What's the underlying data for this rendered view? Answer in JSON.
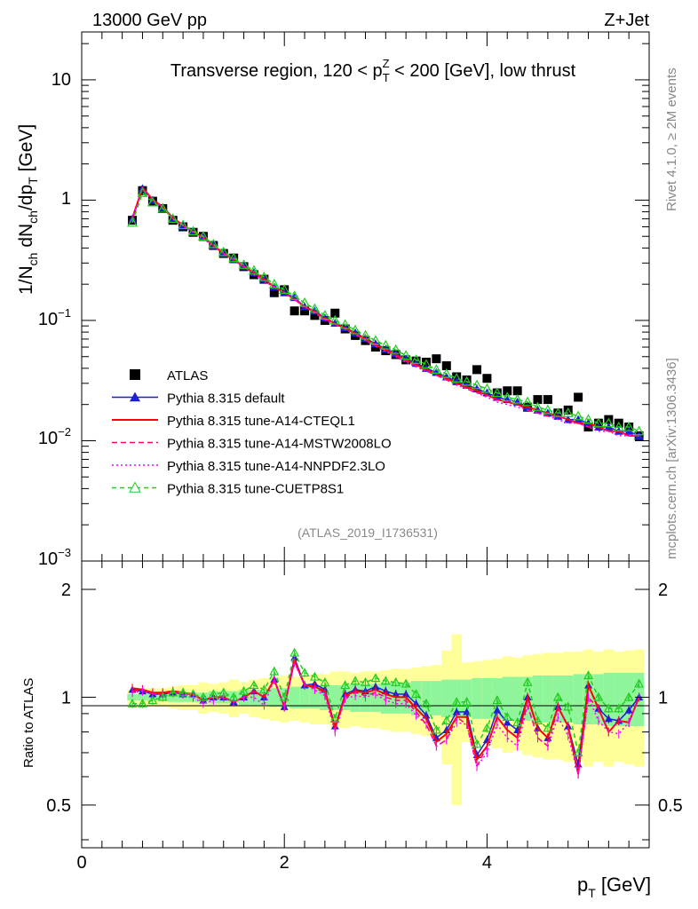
{
  "header": {
    "energy_label": "13000 GeV pp",
    "process_label": "Z+Jet"
  },
  "side_labels": {
    "rivet": "Rivet 4.1.0, ≥ 2M events",
    "mcplots": "mcplots.cern.ch [arXiv:1306.3436]"
  },
  "colors": {
    "atlas": "#000000",
    "default": "#1f1fd6",
    "a14_cteql1": "#ff0000",
    "a14_mstw": "#ff0066",
    "a14_nnpdf": "#ff00ff",
    "cuetp8s1": "#22cc22",
    "band_inner": "#8ff59a",
    "band_outer": "#ffff99"
  },
  "chart_data": [
    {
      "type": "line",
      "title": "Transverse region, 120 < p_T^Z < 200 [GeV], low thrust",
      "analysis_tag": "(ATLAS_2019_I1736531)",
      "ylabel": "1/N_ch dN_ch/dp_T [GeV]",
      "yscale": "log",
      "xlim": [
        0,
        5.6
      ],
      "ylim": [
        0.001,
        25
      ],
      "y_tick_labels": [
        "10^-3",
        "10^-2",
        "10^-1",
        "1",
        "10"
      ],
      "legend_position": "middle-left",
      "x": [
        0.5,
        0.6,
        0.7,
        0.8,
        0.9,
        1.0,
        1.1,
        1.2,
        1.3,
        1.4,
        1.5,
        1.6,
        1.7,
        1.8,
        1.9,
        2.0,
        2.1,
        2.2,
        2.3,
        2.4,
        2.5,
        2.6,
        2.7,
        2.8,
        2.9,
        3.0,
        3.1,
        3.2,
        3.3,
        3.4,
        3.5,
        3.6,
        3.7,
        3.8,
        3.9,
        4.0,
        4.1,
        4.2,
        4.3,
        4.4,
        4.5,
        4.6,
        4.7,
        4.8,
        4.9,
        5.0,
        5.1,
        5.2,
        5.3,
        5.4,
        5.5
      ],
      "series": [
        {
          "name": "ATLAS",
          "key": "atlas",
          "style": "square",
          "values": [
            0.68,
            1.2,
            0.98,
            0.85,
            0.68,
            0.6,
            0.54,
            0.5,
            0.42,
            0.36,
            0.33,
            0.28,
            0.24,
            0.22,
            0.17,
            0.18,
            0.12,
            0.12,
            0.11,
            0.1,
            0.115,
            0.085,
            0.075,
            0.068,
            0.06,
            0.056,
            0.052,
            0.047,
            0.046,
            0.045,
            0.048,
            0.042,
            0.034,
            0.032,
            0.039,
            0.033,
            0.025,
            0.026,
            0.026,
            0.019,
            0.022,
            0.022,
            0.017,
            0.018,
            0.023,
            0.013,
            0.014,
            0.015,
            0.014,
            0.013,
            0.011
          ]
        },
        {
          "name": "Pythia 8.315 default",
          "key": "default",
          "style": "line-triangle",
          "values": [
            0.7,
            1.25,
            1.0,
            0.87,
            0.7,
            0.61,
            0.55,
            0.49,
            0.42,
            0.36,
            0.32,
            0.28,
            0.25,
            0.22,
            0.19,
            0.17,
            0.155,
            0.13,
            0.12,
            0.105,
            0.095,
            0.087,
            0.079,
            0.071,
            0.064,
            0.058,
            0.053,
            0.048,
            0.044,
            0.04,
            0.037,
            0.034,
            0.031,
            0.029,
            0.027,
            0.025,
            0.023,
            0.022,
            0.021,
            0.019,
            0.018,
            0.017,
            0.016,
            0.015,
            0.015,
            0.014,
            0.013,
            0.013,
            0.012,
            0.012,
            0.011
          ]
        },
        {
          "name": "Pythia 8.315 tune-A14-CTEQL1",
          "key": "a14_cteql1",
          "style": "solid",
          "values": [
            0.71,
            1.27,
            1.01,
            0.88,
            0.71,
            0.62,
            0.55,
            0.49,
            0.42,
            0.36,
            0.32,
            0.28,
            0.25,
            0.22,
            0.19,
            0.17,
            0.15,
            0.13,
            0.118,
            0.104,
            0.094,
            0.086,
            0.078,
            0.07,
            0.063,
            0.057,
            0.052,
            0.047,
            0.043,
            0.039,
            0.036,
            0.033,
            0.03,
            0.028,
            0.026,
            0.024,
            0.022,
            0.021,
            0.02,
            0.019,
            0.018,
            0.017,
            0.016,
            0.015,
            0.014,
            0.014,
            0.013,
            0.012,
            0.012,
            0.011,
            0.011
          ]
        },
        {
          "name": "Pythia 8.315 tune-A14-MSTW2008LO",
          "key": "a14_mstw",
          "style": "dashed",
          "values": [
            0.71,
            1.26,
            1.0,
            0.87,
            0.7,
            0.61,
            0.55,
            0.49,
            0.42,
            0.36,
            0.32,
            0.28,
            0.25,
            0.22,
            0.19,
            0.17,
            0.15,
            0.13,
            0.117,
            0.103,
            0.093,
            0.085,
            0.077,
            0.069,
            0.062,
            0.056,
            0.051,
            0.046,
            0.042,
            0.038,
            0.035,
            0.032,
            0.03,
            0.027,
            0.025,
            0.024,
            0.022,
            0.021,
            0.02,
            0.018,
            0.017,
            0.016,
            0.016,
            0.015,
            0.014,
            0.013,
            0.013,
            0.012,
            0.012,
            0.011,
            0.011
          ]
        },
        {
          "name": "Pythia 8.315 tune-A14-NNPDF2.3LO",
          "key": "a14_nnpdf",
          "style": "dotted",
          "values": [
            0.7,
            1.25,
            1.0,
            0.87,
            0.7,
            0.61,
            0.54,
            0.48,
            0.41,
            0.36,
            0.32,
            0.28,
            0.24,
            0.21,
            0.19,
            0.17,
            0.15,
            0.13,
            0.115,
            0.101,
            0.092,
            0.084,
            0.076,
            0.068,
            0.061,
            0.055,
            0.05,
            0.045,
            0.041,
            0.038,
            0.035,
            0.032,
            0.029,
            0.027,
            0.025,
            0.023,
            0.021,
            0.02,
            0.019,
            0.018,
            0.017,
            0.016,
            0.015,
            0.014,
            0.014,
            0.013,
            0.012,
            0.012,
            0.011,
            0.011,
            0.011
          ]
        },
        {
          "name": "Pythia 8.315 tune-CUETP8S1",
          "key": "cuetp8s1",
          "style": "dashed-triangle-open",
          "values": [
            0.65,
            1.15,
            0.96,
            0.85,
            0.7,
            0.62,
            0.55,
            0.5,
            0.43,
            0.37,
            0.33,
            0.29,
            0.26,
            0.23,
            0.2,
            0.18,
            0.16,
            0.14,
            0.125,
            0.11,
            0.1,
            0.092,
            0.083,
            0.075,
            0.068,
            0.062,
            0.057,
            0.051,
            0.047,
            0.043,
            0.039,
            0.036,
            0.033,
            0.031,
            0.029,
            0.027,
            0.025,
            0.023,
            0.022,
            0.021,
            0.019,
            0.018,
            0.017,
            0.017,
            0.016,
            0.015,
            0.014,
            0.014,
            0.013,
            0.013,
            0.012
          ]
        }
      ]
    },
    {
      "type": "line",
      "ylabel": "Ratio to ATLAS",
      "xlabel": "p_T [GeV]",
      "xlim": [
        0,
        5.6
      ],
      "ylim": [
        0.38,
        2.4
      ],
      "yscale": "log",
      "x_ticks": [
        0,
        2,
        4
      ],
      "y_ticks": [
        0.5,
        1,
        2
      ],
      "reference_line": 1,
      "x": [
        0.5,
        0.6,
        0.7,
        0.8,
        0.9,
        1.0,
        1.1,
        1.2,
        1.3,
        1.4,
        1.5,
        1.6,
        1.7,
        1.8,
        1.9,
        2.0,
        2.1,
        2.2,
        2.3,
        2.4,
        2.5,
        2.6,
        2.7,
        2.8,
        2.9,
        3.0,
        3.1,
        3.2,
        3.3,
        3.4,
        3.5,
        3.6,
        3.7,
        3.8,
        3.9,
        4.0,
        4.1,
        4.2,
        4.3,
        4.4,
        4.5,
        4.6,
        4.7,
        4.8,
        4.9,
        5.0,
        5.1,
        5.2,
        5.3,
        5.4,
        5.5
      ],
      "bands": {
        "inner_half_width": [
          0.02,
          0.02,
          0.02,
          0.02,
          0.03,
          0.03,
          0.03,
          0.03,
          0.04,
          0.04,
          0.04,
          0.05,
          0.05,
          0.05,
          0.06,
          0.06,
          0.07,
          0.07,
          0.07,
          0.08,
          0.08,
          0.08,
          0.09,
          0.09,
          0.09,
          0.1,
          0.1,
          0.1,
          0.11,
          0.11,
          0.11,
          0.12,
          0.12,
          0.12,
          0.13,
          0.13,
          0.13,
          0.14,
          0.14,
          0.14,
          0.15,
          0.15,
          0.15,
          0.15,
          0.16,
          0.16,
          0.16,
          0.17,
          0.17,
          0.17,
          0.17
        ],
        "outer_half_width": [
          0.05,
          0.06,
          0.06,
          0.06,
          0.07,
          0.08,
          0.08,
          0.1,
          0.09,
          0.1,
          0.12,
          0.1,
          0.12,
          0.13,
          0.14,
          0.15,
          0.14,
          0.15,
          0.16,
          0.16,
          0.18,
          0.18,
          0.17,
          0.18,
          0.18,
          0.19,
          0.2,
          0.2,
          0.21,
          0.22,
          0.23,
          0.35,
          0.5,
          0.25,
          0.26,
          0.27,
          0.28,
          0.3,
          0.29,
          0.31,
          0.32,
          0.33,
          0.33,
          0.34,
          0.34,
          0.36,
          0.34,
          0.36,
          0.34,
          0.35,
          0.36
        ]
      },
      "series": [
        {
          "name": "Pythia 8.315 default",
          "key": "default",
          "values": [
            1.05,
            1.04,
            1.02,
            1.02,
            1.03,
            1.02,
            1.02,
            0.98,
            1.0,
            1.0,
            0.97,
            1.0,
            1.04,
            1.0,
            1.12,
            0.94,
            1.29,
            1.08,
            1.09,
            1.05,
            0.83,
            1.02,
            1.05,
            1.04,
            1.07,
            1.04,
            1.02,
            1.02,
            0.96,
            0.89,
            0.77,
            0.81,
            0.91,
            0.91,
            0.69,
            0.76,
            0.92,
            0.85,
            0.81,
            1.0,
            0.82,
            0.77,
            0.94,
            0.83,
            0.65,
            1.08,
            0.93,
            0.87,
            0.86,
            0.92,
            1.0
          ]
        },
        {
          "name": "Pythia 8.315 tune-A14-CTEQL1",
          "key": "a14_cteql1",
          "values": [
            1.06,
            1.05,
            1.03,
            1.03,
            1.04,
            1.03,
            1.02,
            0.98,
            1.0,
            1.0,
            0.97,
            1.0,
            1.04,
            1.0,
            1.12,
            0.94,
            1.27,
            1.08,
            1.07,
            1.04,
            0.82,
            1.01,
            1.04,
            1.03,
            1.05,
            1.02,
            1.0,
            1.0,
            0.93,
            0.87,
            0.75,
            0.79,
            0.88,
            0.88,
            0.67,
            0.73,
            0.88,
            0.81,
            0.77,
            1.0,
            0.82,
            0.77,
            0.94,
            0.83,
            0.61,
            1.08,
            0.93,
            0.8,
            0.86,
            0.85,
            1.0
          ]
        },
        {
          "name": "Pythia 8.315 tune-A14-MSTW2008LO",
          "key": "a14_mstw",
          "values": [
            1.04,
            1.05,
            1.02,
            1.02,
            1.03,
            1.02,
            1.02,
            0.98,
            1.0,
            1.0,
            0.97,
            1.0,
            1.04,
            1.0,
            1.12,
            0.94,
            1.25,
            1.08,
            1.06,
            1.03,
            0.81,
            1.0,
            1.03,
            1.01,
            1.03,
            1.0,
            0.98,
            0.98,
            0.91,
            0.84,
            0.73,
            0.76,
            0.88,
            0.84,
            0.64,
            0.73,
            0.88,
            0.81,
            0.77,
            0.95,
            0.77,
            0.73,
            0.94,
            0.83,
            0.61,
            1.0,
            0.93,
            0.8,
            0.86,
            0.85,
            1.0
          ]
        },
        {
          "name": "Pythia 8.315 tune-A14-NNPDF2.3LO",
          "key": "a14_nnpdf",
          "values": [
            1.03,
            1.04,
            1.02,
            1.02,
            1.03,
            1.02,
            1.0,
            0.96,
            0.98,
            1.0,
            0.97,
            1.0,
            1.0,
            0.95,
            1.12,
            0.94,
            1.25,
            1.08,
            1.05,
            1.01,
            0.8,
            0.99,
            1.01,
            1.0,
            1.02,
            0.98,
            0.96,
            0.96,
            0.89,
            0.84,
            0.73,
            0.76,
            0.85,
            0.84,
            0.64,
            0.7,
            0.84,
            0.77,
            0.73,
            0.95,
            0.77,
            0.73,
            0.88,
            0.78,
            0.61,
            1.0,
            0.86,
            0.8,
            0.79,
            0.85,
            1.0
          ]
        },
        {
          "name": "Pythia 8.315 tune-CUETP8S1",
          "key": "cuetp8s1",
          "values": [
            0.96,
            0.96,
            0.98,
            1.0,
            1.03,
            1.03,
            1.02,
            1.0,
            1.02,
            1.03,
            1.0,
            1.04,
            1.08,
            1.05,
            1.18,
            1.0,
            1.33,
            1.17,
            1.14,
            1.1,
            0.87,
            1.08,
            1.11,
            1.1,
            1.13,
            1.11,
            1.1,
            1.09,
            1.02,
            0.96,
            0.81,
            0.86,
            0.97,
            0.97,
            0.74,
            0.82,
            0.98,
            0.88,
            0.85,
            1.1,
            0.86,
            0.82,
            1.0,
            0.94,
            0.7,
            1.15,
            1.0,
            0.93,
            0.93,
            1.0,
            1.09
          ]
        }
      ]
    }
  ]
}
